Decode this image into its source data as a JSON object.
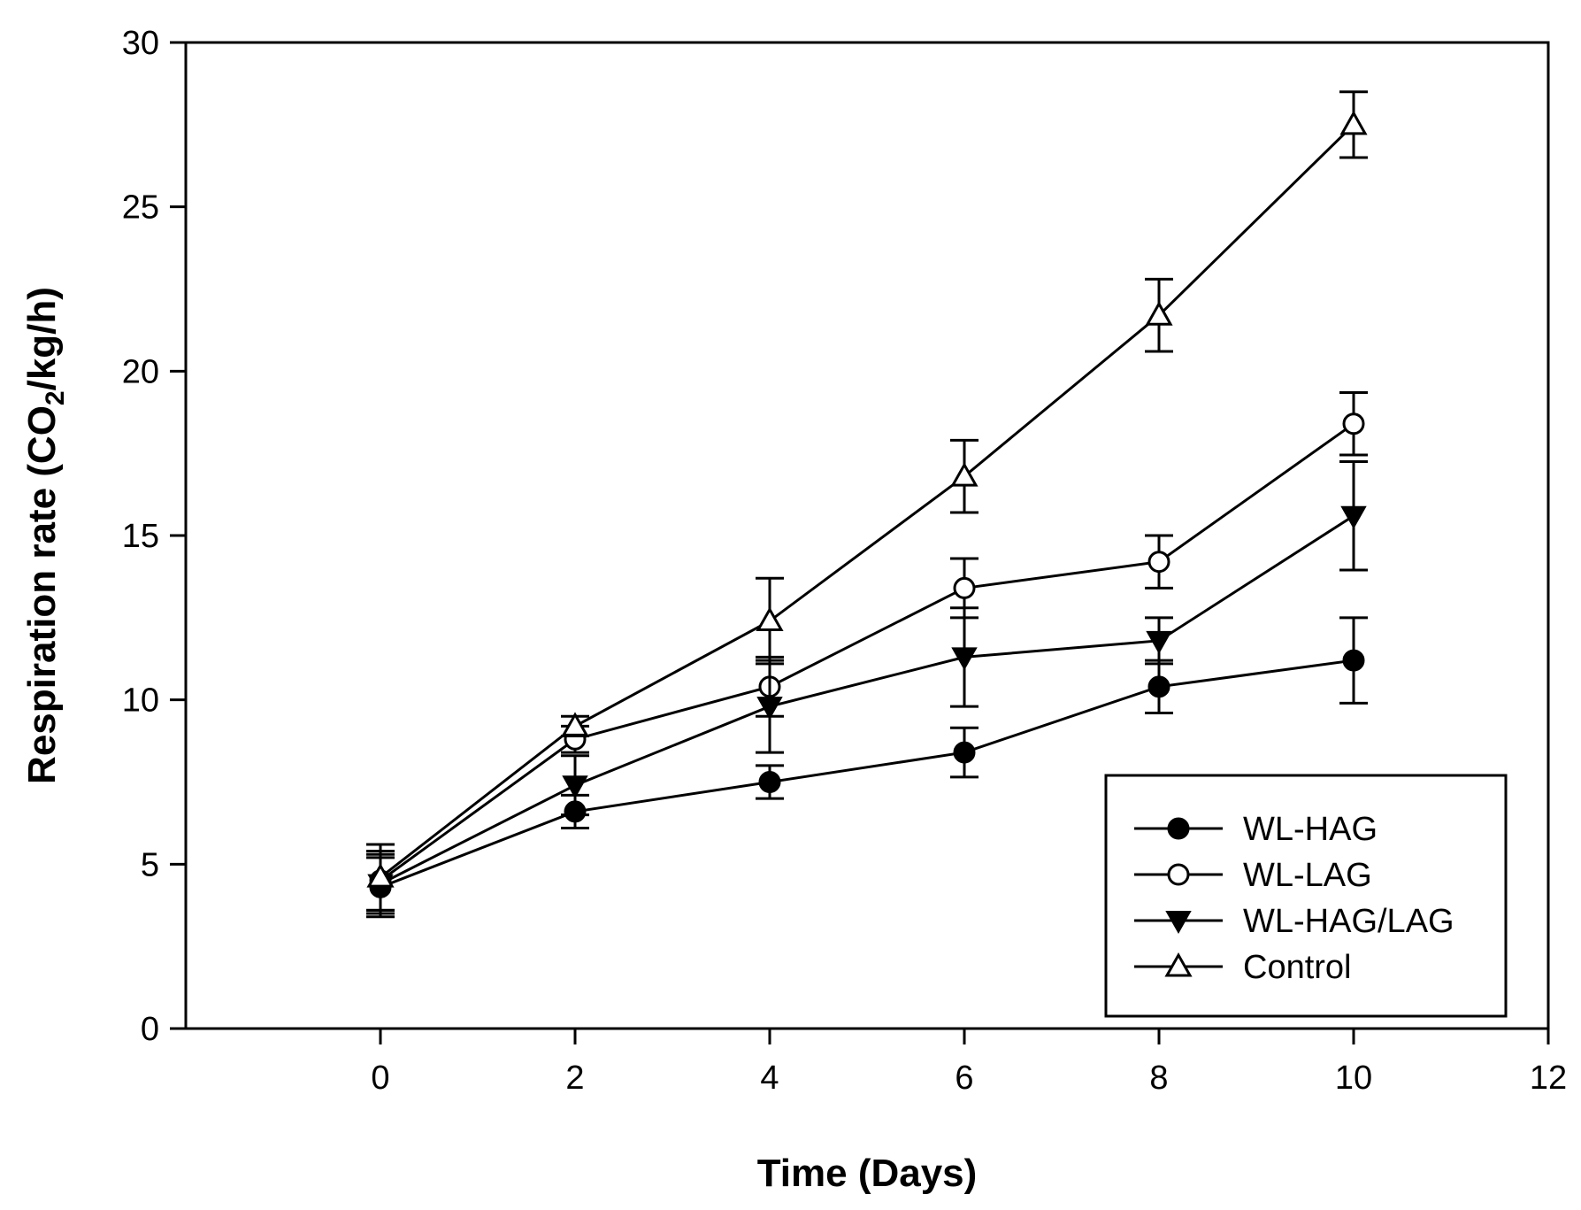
{
  "chart_data": {
    "type": "line",
    "title": "",
    "xlabel": "Time (Days)",
    "ylabel": {
      "prefix": "Respiration rate (CO",
      "subscript": "2",
      "suffix": "/kg/h)"
    },
    "xlim": [
      -2,
      12
    ],
    "ylim": [
      0,
      30
    ],
    "xticks": [
      0,
      2,
      4,
      6,
      8,
      10,
      12
    ],
    "yticks": [
      0,
      5,
      10,
      15,
      20,
      25,
      30
    ],
    "grid": false,
    "legend_position": "bottom-right",
    "x": [
      0,
      2,
      4,
      6,
      8,
      10
    ],
    "series": [
      {
        "name": "WL-HAG",
        "marker": "filled-circle",
        "values": [
          4.3,
          6.6,
          7.5,
          8.4,
          10.4,
          11.2
        ],
        "errors": [
          0.9,
          0.5,
          0.5,
          0.75,
          0.8,
          1.3
        ]
      },
      {
        "name": "WL-LAG",
        "marker": "open-circle",
        "values": [
          4.5,
          8.8,
          10.4,
          13.4,
          14.2,
          18.4
        ],
        "errors": [
          0.9,
          0.4,
          0.9,
          0.9,
          0.8,
          0.95
        ]
      },
      {
        "name": "WL-HAG/LAG",
        "marker": "filled-triangle-down",
        "values": [
          4.4,
          7.4,
          9.8,
          11.3,
          11.8,
          15.6
        ],
        "errors": [
          0.9,
          0.9,
          1.4,
          1.5,
          0.7,
          1.65
        ]
      },
      {
        "name": "Control",
        "marker": "open-triangle-up",
        "values": [
          4.6,
          9.2,
          12.4,
          16.8,
          21.7,
          27.5
        ],
        "errors": [
          1.0,
          0.3,
          1.3,
          1.1,
          1.1,
          1.0
        ]
      }
    ]
  }
}
